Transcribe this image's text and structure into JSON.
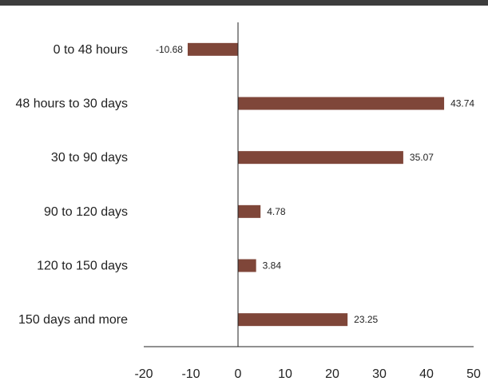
{
  "chart_data": {
    "type": "bar",
    "orientation": "horizontal",
    "categories": [
      "0 to 48 hours",
      "48 hours to 30 days",
      "30 to 90 days",
      "90 to 120 days",
      "120 to 150 days",
      "150 days and more"
    ],
    "values": [
      -10.68,
      43.74,
      35.07,
      4.78,
      3.84,
      23.25
    ],
    "data_labels": [
      "-10.68",
      "43.74",
      "35.07",
      "4.78",
      "3.84",
      "23.25"
    ],
    "xticks": [
      "-20",
      "-10",
      "0",
      "10",
      "20",
      "30",
      "40",
      "50"
    ],
    "xlim": [
      -20,
      50
    ],
    "bar_color": "#7f4639",
    "axis_color": "#222222",
    "grid": false,
    "legend": "none",
    "title": "",
    "xlabel": "",
    "ylabel": ""
  }
}
